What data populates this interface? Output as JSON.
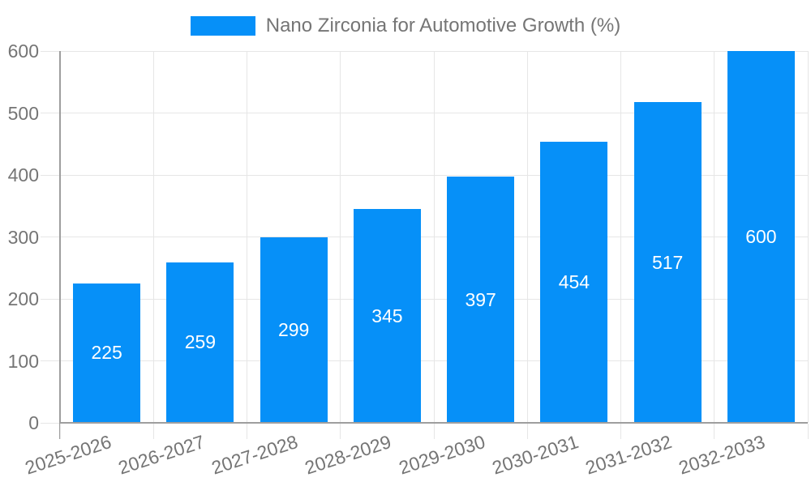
{
  "legend": {
    "label": "Nano Zirconia for Automotive Growth (%)",
    "swatch_color": "#0690f8"
  },
  "chart_data": {
    "type": "bar",
    "title": "Nano Zirconia for Automotive Growth (%)",
    "categories": [
      "2025-2026",
      "2026-2027",
      "2027-2028",
      "2028-2029",
      "2029-2030",
      "2030-2031",
      "2031-2032",
      "2032-2033"
    ],
    "values": [
      225,
      259,
      299,
      345,
      397,
      454,
      517,
      600
    ],
    "series_name": "Nano Zirconia for Automotive Growth (%)",
    "xlabel": "",
    "ylabel": "",
    "ylim": [
      0,
      600
    ],
    "yticks": [
      0,
      100,
      200,
      300,
      400,
      500,
      600
    ],
    "grid": true,
    "legend_position": "top-center",
    "value_label_position": "inside-center",
    "x_tick_label_rotation_deg": -18,
    "bar_color": "#0690f8",
    "value_label_color": "#ffffff",
    "axis_text_color": "#757575",
    "grid_color": "#e6e6e6",
    "axis_line_color": "#9e9e9e",
    "background_color": "#ffffff"
  }
}
